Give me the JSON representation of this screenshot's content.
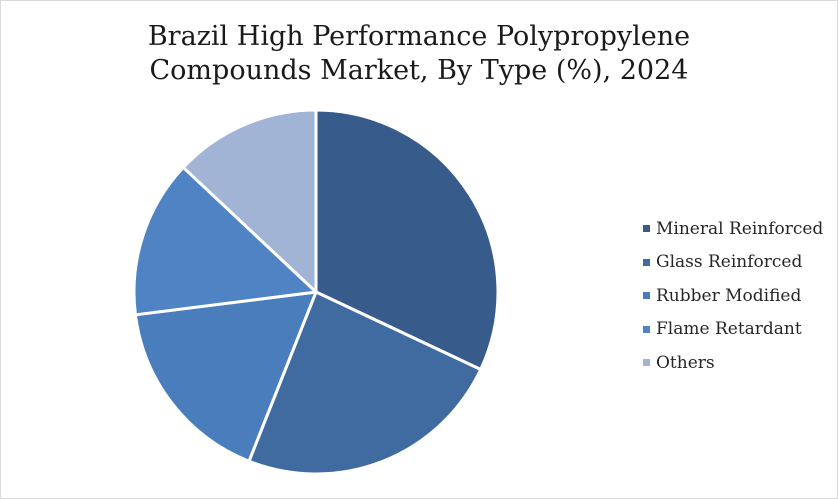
{
  "chart_data": {
    "type": "pie",
    "title_lines": [
      "Brazil High Performance Polypropylene",
      "Compounds Market, By Type (%), 2024"
    ],
    "unit": "%",
    "legend_position": "right",
    "slices": [
      {
        "label": "Mineral Reinforced",
        "value": 32,
        "color": "#375c8c"
      },
      {
        "label": "Glass Reinforced",
        "value": 24,
        "color": "#3f6ba1"
      },
      {
        "label": "Rubber Modified",
        "value": 17,
        "color": "#4a7dbb"
      },
      {
        "label": "Flame Retardant",
        "value": 14,
        "color": "#4f83c3"
      },
      {
        "label": "Others",
        "value": 13,
        "color": "#a2b4d6"
      }
    ]
  }
}
